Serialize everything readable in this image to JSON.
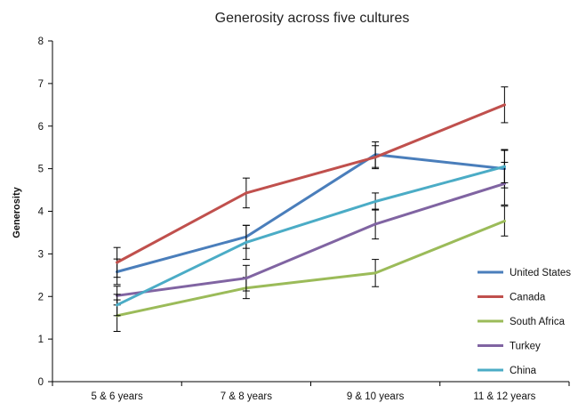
{
  "chart_data": {
    "type": "line",
    "title": "Generosity across five cultures",
    "xlabel": "",
    "ylabel": "Generosity",
    "ylim": [
      0,
      8
    ],
    "yticks": [
      0,
      1,
      2,
      3,
      4,
      5,
      6,
      7,
      8
    ],
    "categories": [
      "5 & 6 years",
      "7 & 8 years",
      "9 & 10 years",
      "11 & 12 years"
    ],
    "grid": false,
    "legend_position": "right-bottom",
    "error_bars": true,
    "series": [
      {
        "name": "United States",
        "color": "#4a7ebb",
        "values": [
          2.58,
          3.4,
          5.33,
          5.0
        ],
        "errors": [
          0.3,
          0.27,
          0.3,
          0.45
        ]
      },
      {
        "name": "Canada",
        "color": "#c0504d",
        "values": [
          2.8,
          4.43,
          5.27,
          6.5
        ],
        "errors": [
          0.35,
          0.35,
          0.27,
          0.42
        ]
      },
      {
        "name": "South Africa",
        "color": "#9bbb59",
        "values": [
          1.55,
          2.2,
          2.55,
          3.77
        ],
        "errors": [
          0.37,
          0.25,
          0.32,
          0.35
        ]
      },
      {
        "name": "Turkey",
        "color": "#8064a2",
        "values": [
          2.02,
          2.43,
          3.7,
          4.65
        ],
        "errors": [
          0.22,
          0.3,
          0.35,
          0.5
        ]
      },
      {
        "name": "China",
        "color": "#4bacc6",
        "values": [
          1.8,
          3.27,
          4.23,
          5.05
        ],
        "errors": [
          0.25,
          0.4,
          0.2,
          0.38
        ]
      }
    ]
  }
}
